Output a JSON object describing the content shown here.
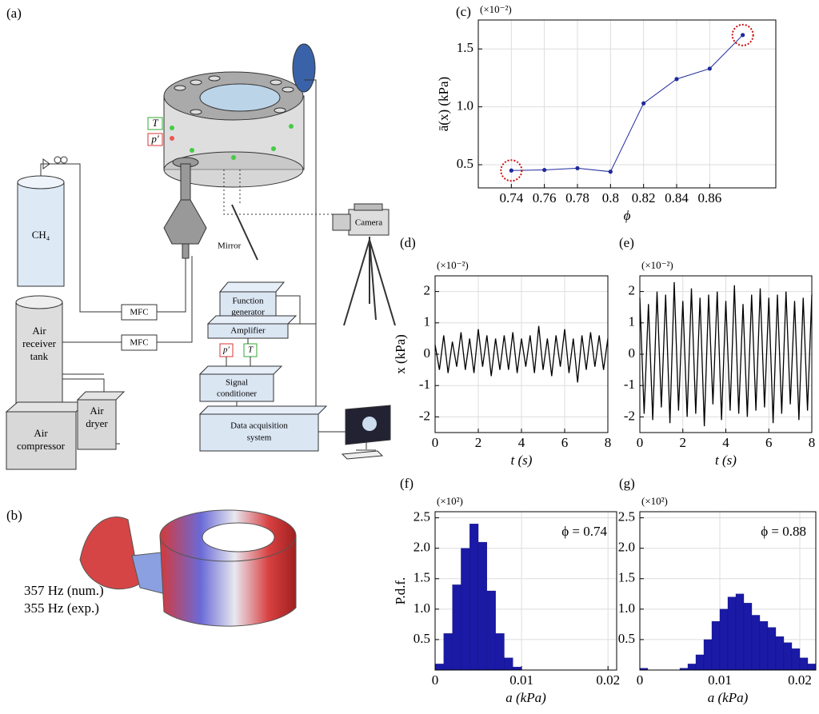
{
  "figure": {
    "a": {
      "label": "(a)",
      "ch4": "CH₄",
      "t_sensor": "T",
      "p_sensor": "p′",
      "mirror": "Mirror",
      "camera": "Camera",
      "mfc": [
        "MFC",
        "MFC"
      ],
      "receiver": [
        "Air",
        "receiver",
        "tank"
      ],
      "compressor": [
        "Air",
        "compressor"
      ],
      "dryer": [
        "Air",
        "dryer"
      ],
      "function_generator": [
        "Function",
        "generator"
      ],
      "amplifier": "Amplifier",
      "p_channel": "p′",
      "t_channel": "T",
      "conditioner": [
        "Signal",
        "conditioner"
      ],
      "daq": [
        "Data acquisition",
        "system"
      ]
    },
    "b": {
      "label": "(b)",
      "modes": [
        "357 Hz (num.)",
        "355 Hz (exp.)"
      ]
    }
  },
  "chart_data": [
    {
      "type": "line",
      "label": "(c)",
      "multiplier": "(×10⁻²)",
      "xlabel": "ϕ",
      "ylabel": "ā(x) (kPa)",
      "color": "#1f2a9c",
      "grid": true,
      "markers": true,
      "highlighted": [
        0,
        7
      ],
      "highlight_color": "#cc1111",
      "x": [
        0.74,
        0.76,
        0.78,
        0.8,
        0.82,
        0.84,
        0.86,
        0.88
      ],
      "values": [
        0.45,
        0.455,
        0.47,
        0.44,
        1.03,
        1.24,
        1.33,
        1.62
      ],
      "xlim": [
        0.72,
        0.9
      ],
      "ylim": [
        0.3,
        1.75
      ],
      "xticks": [
        0.74,
        0.76,
        0.78,
        0.8,
        0.82,
        0.84,
        0.86
      ],
      "yticks": [
        0.5,
        {
          "value": 1,
          "label": "1.0"
        },
        1.5
      ]
    },
    {
      "type": "line",
      "label": "(d)",
      "multiplier": "(×10⁻²)",
      "xlabel": "t (s)",
      "ylabel": "x (kPa)",
      "color": "#000000",
      "grid": true,
      "x": [
        0,
        0.2,
        0.4,
        0.6,
        0.8,
        1,
        1.2,
        1.4,
        1.6,
        1.8,
        2,
        2.2,
        2.4,
        2.6,
        2.8,
        3,
        3.2,
        3.4,
        3.6,
        3.8,
        4,
        4.2,
        4.4,
        4.6,
        4.8,
        5,
        5.2,
        5.4,
        5.6,
        5.8,
        6,
        6.2,
        6.4,
        6.6,
        6.8,
        7,
        7.2,
        7.4,
        7.6,
        7.8,
        8
      ],
      "values": [
        0.3,
        -0.5,
        0.6,
        -0.6,
        0.4,
        -0.4,
        0.7,
        -0.5,
        0.5,
        -0.6,
        0.8,
        -0.4,
        0.6,
        -0.7,
        0.5,
        -0.5,
        0.6,
        -0.5,
        0.7,
        -0.6,
        0.5,
        -0.4,
        0.6,
        -0.6,
        0.9,
        -0.5,
        0.5,
        -0.7,
        0.6,
        -0.4,
        0.8,
        -0.6,
        0.5,
        -0.9,
        0.6,
        -0.5,
        0.7,
        -0.4,
        0.6,
        -0.5,
        0.5
      ],
      "xlim": [
        0,
        8
      ],
      "ylim": [
        -2.5,
        2.5
      ],
      "xticks": [
        0,
        2,
        4,
        6,
        8
      ],
      "yticks": [
        -2,
        -1,
        0,
        1,
        2
      ]
    },
    {
      "type": "line",
      "label": "(e)",
      "multiplier": "(×10⁻²)",
      "xlabel": "t (s)",
      "color": "#000000",
      "grid": true,
      "x": [
        0,
        0.2,
        0.4,
        0.6,
        0.8,
        1,
        1.2,
        1.4,
        1.6,
        1.8,
        2,
        2.2,
        2.4,
        2.6,
        2.8,
        3,
        3.2,
        3.4,
        3.6,
        3.8,
        4,
        4.2,
        4.4,
        4.6,
        4.8,
        5,
        5.2,
        5.4,
        5.6,
        5.8,
        6,
        6.2,
        6.4,
        6.6,
        6.8,
        7,
        7.2,
        7.4,
        7.6,
        7.8,
        8
      ],
      "values": [
        1.8,
        -1.9,
        1.6,
        -2.1,
        2.0,
        -1.7,
        1.9,
        -2.2,
        2.3,
        -1.8,
        1.7,
        -2.0,
        2.1,
        -1.9,
        1.8,
        -2.3,
        1.9,
        -1.6,
        2.0,
        -2.1,
        1.7,
        -1.8,
        2.2,
        -1.9,
        1.6,
        -2.0,
        1.9,
        -1.8,
        2.1,
        -1.7,
        1.8,
        -2.2,
        1.9,
        -1.9,
        2.0,
        -1.6,
        1.7,
        -2.1,
        1.8,
        -1.8,
        1.9
      ],
      "xlim": [
        0,
        8
      ],
      "ylim": [
        -2.5,
        2.5
      ],
      "xticks": [
        0,
        2,
        4,
        6,
        8
      ],
      "yticks": [
        -2,
        -1,
        0,
        1,
        2
      ]
    },
    {
      "type": "histogram",
      "label": "(f)",
      "multiplier": "(×10²)",
      "xlabel": "a (kPa)",
      "ylabel": "P.d.f.",
      "annotation": "ϕ = 0.74",
      "color": "#1a1aa6",
      "grid": true,
      "bins": [
        0,
        0.001,
        0.002,
        0.003,
        0.004,
        0.005,
        0.006,
        0.007,
        0.008,
        0.009,
        0.01,
        0.011,
        0.012,
        0.013,
        0.014,
        0.015,
        0.016,
        0.017,
        0.018,
        0.019,
        0.02,
        0.021,
        0.022
      ],
      "values": [
        0.1,
        0.6,
        1.4,
        2.0,
        2.4,
        2.1,
        1.3,
        0.6,
        0.2,
        0.05,
        0,
        0,
        0,
        0,
        0,
        0,
        0,
        0,
        0,
        0,
        0,
        0
      ],
      "xlim": [
        0,
        0.021
      ],
      "ylim": [
        0,
        2.6
      ],
      "xticks": [
        0,
        0.01,
        0.02
      ],
      "yticks": [
        0.5,
        {
          "value": 1,
          "label": "1.0"
        },
        1.5,
        {
          "value": 2,
          "label": "2.0"
        },
        2.5
      ]
    },
    {
      "type": "histogram",
      "label": "(g)",
      "multiplier": "(×10²)",
      "xlabel": "a (kPa)",
      "annotation": "ϕ = 0.88",
      "color": "#1a1aa6",
      "grid": true,
      "bins": [
        0,
        0.001,
        0.002,
        0.003,
        0.004,
        0.005,
        0.006,
        0.007,
        0.008,
        0.009,
        0.01,
        0.011,
        0.012,
        0.013,
        0.014,
        0.015,
        0.016,
        0.017,
        0.018,
        0.019,
        0.02,
        0.021,
        0.022
      ],
      "values": [
        0.03,
        0,
        0,
        0,
        0,
        0.03,
        0.1,
        0.25,
        0.5,
        0.8,
        1.0,
        1.2,
        1.25,
        1.1,
        0.9,
        0.8,
        0.7,
        0.55,
        0.45,
        0.35,
        0.2,
        0.1
      ],
      "xlim": [
        0,
        0.022
      ],
      "ylim": [
        0,
        2.6
      ],
      "xticks": [
        0,
        0.01,
        0.02
      ],
      "yticks": [
        0.5,
        {
          "value": 1,
          "label": "1.0"
        },
        1.5,
        {
          "value": 2,
          "label": "2.0"
        },
        2.5
      ]
    }
  ]
}
